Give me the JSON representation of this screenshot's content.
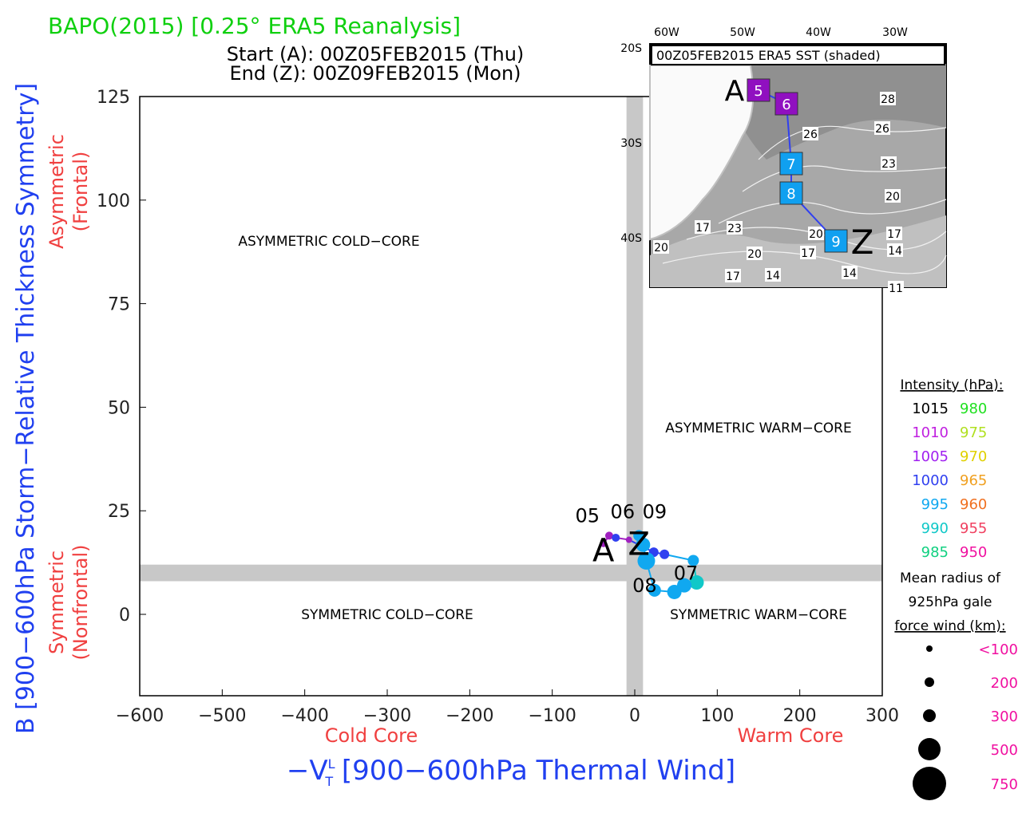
{
  "chart_data": {
    "type": "scatter",
    "title": "BAPO(2015) [0.25° ERA5 Reanalysis]",
    "start_label": "Start (A): 00Z05FEB2015 (Thu)",
    "end_label": "End (Z): 00Z09FEB2015 (Mon)",
    "xlabel": "−V",
    "xlabel_sub": "T",
    "xlabel_sup": "L",
    "xlabel_rest": " [900−600hPa Thermal Wind]",
    "ylabel": "B [900−600hPa Storm−Relative Thickness Symmetry]",
    "x_left_label": "Cold Core",
    "x_right_label": "Warm Core",
    "y_top_label": [
      "Asymmetric",
      "(Frontal)"
    ],
    "y_bottom_label": [
      "Symmetric",
      "(Nonfrontal)"
    ],
    "xlim": [
      -600,
      300
    ],
    "ylim": [
      -20,
      125
    ],
    "xticks": [
      -600,
      -500,
      -400,
      -300,
      -200,
      -100,
      0,
      100,
      200,
      300
    ],
    "xtick_labels": [
      "−600",
      "−500",
      "−400",
      "−300",
      "−200",
      "−100",
      "0",
      "100",
      "200",
      "300"
    ],
    "yticks": [
      0,
      25,
      50,
      75,
      100,
      125
    ],
    "quadrants": {
      "acc": "ASYMMETRIC COLD−CORE",
      "awc": "ASYMMETRIC WARM−CORE",
      "scc": "SYMMETRIC COLD−CORE",
      "swc": "SYMMETRIC WARM−CORE"
    },
    "series": [
      {
        "name": "BAPO track",
        "points": [
          {
            "x": -38,
            "y": 17,
            "color": "#a020c0",
            "r": 4
          },
          {
            "x": -31,
            "y": 19,
            "color": "#a020c0",
            "r": 5
          },
          {
            "x": -23,
            "y": 18.5,
            "color": "#3040f0",
            "r": 5
          },
          {
            "x": -7,
            "y": 18,
            "color": "#a020c0",
            "r": 4
          },
          {
            "x": 23,
            "y": 15,
            "color": "#3040f0",
            "r": 6
          },
          {
            "x": 36,
            "y": 14.5,
            "color": "#3040f0",
            "r": 6
          },
          {
            "x": 71,
            "y": 13,
            "color": "#10a8f0",
            "r": 7
          },
          {
            "x": 75,
            "y": 7.7,
            "color": "#10c8c8",
            "r": 9
          },
          {
            "x": 60,
            "y": 7,
            "color": "#10a8f0",
            "r": 9
          },
          {
            "x": 48,
            "y": 5.4,
            "color": "#10a8f0",
            "r": 9
          },
          {
            "x": 24,
            "y": 5.8,
            "color": "#10a8f0",
            "r": 8
          },
          {
            "x": 14,
            "y": 12.9,
            "color": "#10a8f0",
            "r": 11
          },
          {
            "x": 10,
            "y": 16.8,
            "color": "#10a8f0",
            "r": 9
          },
          {
            "x": 5,
            "y": 19,
            "color": "#10a8f0",
            "r": 7
          }
        ]
      }
    ],
    "day_labels": [
      {
        "t": "05",
        "x": -38,
        "y": 17
      },
      {
        "t": "06",
        "x": -5,
        "y": 17
      },
      {
        "t": "09",
        "x": -2,
        "y": 17
      },
      {
        "t": "07",
        "x": 62,
        "y": 8
      },
      {
        "t": "08",
        "x": 12,
        "y": 5
      }
    ],
    "start_marker": "A",
    "end_marker": "Z"
  },
  "inset": {
    "title": "00Z05FEB2015 ERA5 SST (shaded)",
    "lon_labels": [
      "60W",
      "50W",
      "40W",
      "30W"
    ],
    "lat_labels": [
      "20S",
      "30S",
      "40S"
    ],
    "contour_labels": [
      "28",
      "26",
      "26",
      "23",
      "20",
      "17",
      "23",
      "17",
      "20",
      "20",
      "17",
      "14",
      "20",
      "17",
      "14",
      "14",
      "11"
    ],
    "track": [
      {
        "t": "5",
        "color": "#9010c0"
      },
      {
        "t": "6",
        "color": "#9010c0"
      },
      {
        "t": "7",
        "color": "#10a0f0"
      },
      {
        "t": "8",
        "color": "#10a0f0"
      },
      {
        "t": "9",
        "color": "#10a0f0"
      }
    ]
  },
  "legend": {
    "title": "Intensity (hPa):",
    "rows": [
      [
        "1015",
        "#000000",
        "980",
        "#20e020"
      ],
      [
        "1010",
        "#c020e0",
        "975",
        "#b0e020"
      ],
      [
        "1005",
        "#a020f0",
        "970",
        "#e0d000"
      ],
      [
        "1000",
        "#3040f0",
        "965",
        "#f0a020"
      ],
      [
        "995",
        "#10a8f0",
        "960",
        "#f07020"
      ],
      [
        "990",
        "#10c8c8",
        "955",
        "#f04060"
      ],
      [
        "985",
        "#10d080",
        "950",
        "#f010a0"
      ]
    ],
    "radius_title": [
      "Mean radius of",
      "925hPa gale",
      "force wind (km):"
    ],
    "radii": [
      "<100",
      "200",
      "300",
      "500",
      "750"
    ]
  }
}
